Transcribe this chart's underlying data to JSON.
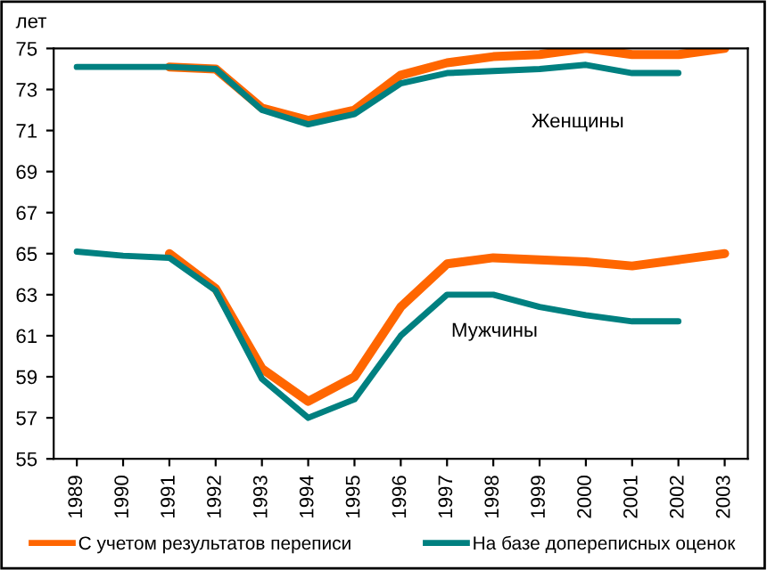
{
  "chart_data": {
    "type": "line",
    "ylabel": "лет",
    "categories": [
      "1989",
      "1990",
      "1991",
      "1992",
      "1993",
      "1994",
      "1995",
      "1996",
      "1997",
      "1998",
      "1999",
      "2000",
      "2001",
      "2002",
      "2003"
    ],
    "series": [
      {
        "name": "С учетом результатов переписи",
        "color": "#ff6600",
        "values": [
          null,
          null,
          74.1,
          74.0,
          72.1,
          71.5,
          72.0,
          73.7,
          74.3,
          74.6,
          74.7,
          75.0,
          74.7,
          74.7,
          75.0
        ]
      },
      {
        "name": "На базе допереписных оценок",
        "color": "#008080",
        "values": [
          74.1,
          74.1,
          74.1,
          74.0,
          72.0,
          71.3,
          71.8,
          73.3,
          73.8,
          73.9,
          74.0,
          74.2,
          73.8,
          73.8,
          null
        ]
      },
      {
        "color": "#ff6600",
        "values": [
          null,
          null,
          65.0,
          63.3,
          59.4,
          57.8,
          59.0,
          62.4,
          64.5,
          64.8,
          64.7,
          64.6,
          64.4,
          64.7,
          65.0
        ]
      },
      {
        "color": "#008080",
        "values": [
          65.1,
          64.9,
          64.8,
          63.2,
          58.9,
          57.0,
          57.9,
          61.0,
          63.0,
          63.0,
          62.4,
          62.0,
          61.7,
          61.7,
          null
        ]
      }
    ],
    "ylim": [
      55,
      75
    ],
    "yticks": [
      55,
      57,
      59,
      61,
      63,
      65,
      67,
      69,
      71,
      73,
      75
    ],
    "annotations": [
      "Женщины",
      "Мужчины"
    ],
    "grid": false,
    "legend": "bottom",
    "marker": "none",
    "line_style": "solid"
  }
}
